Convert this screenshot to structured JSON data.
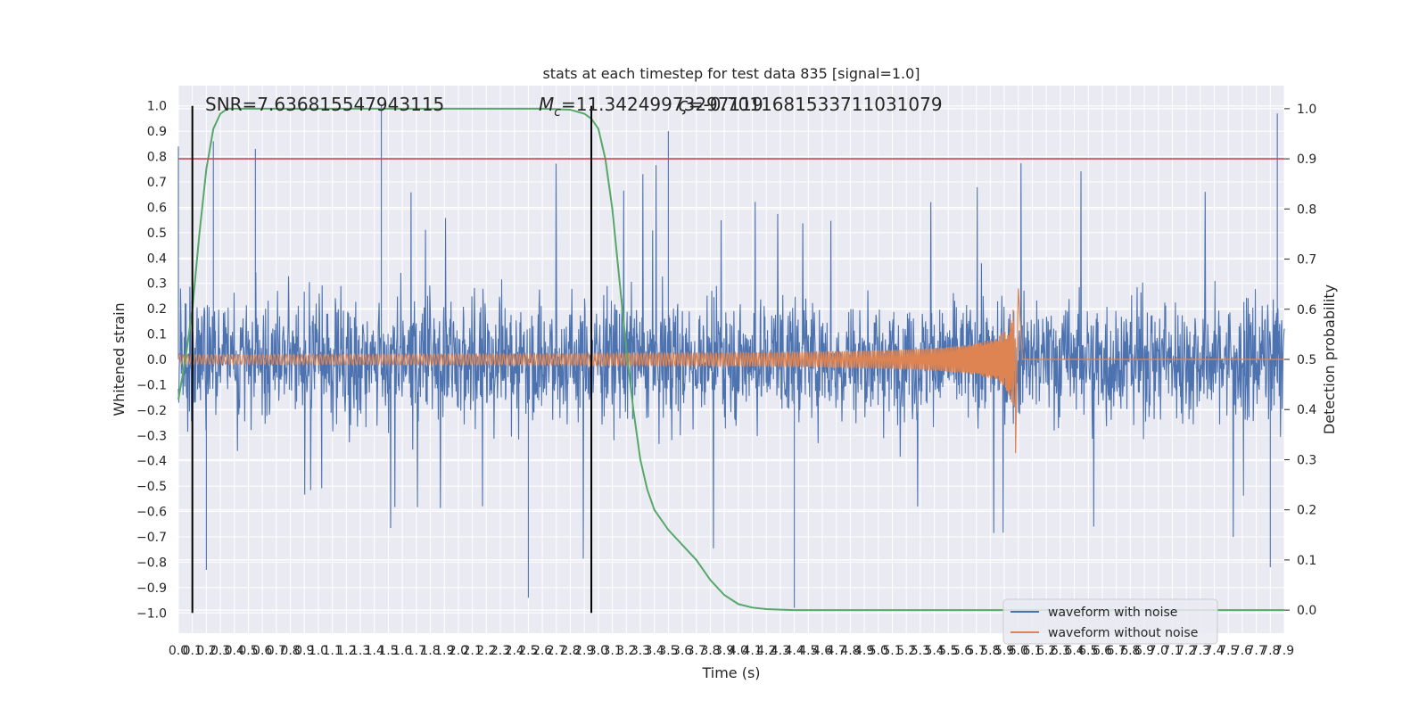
{
  "chart_data": {
    "type": "line",
    "title": "stats at each timestep for test data 835 [signal=1.0]",
    "xlabel": "Time (s)",
    "ylabel_left": "Whitened strain",
    "ylabel_right": "Detection probability",
    "xlim": [
      0.0,
      7.9
    ],
    "ylim_left": [
      -1.08,
      1.08
    ],
    "ylim_right": [
      -0.046,
      1.046
    ],
    "grid": true,
    "legend_position": "lower right",
    "annotations": {
      "snr": "SNR=7.636815547943115",
      "mc_prefix": "M",
      "mc_sub": "c",
      "mc_value": "=11.34249973297119",
      "overlap": "=-0.7011681533711031079"
    },
    "x_ticks": [
      "0.0",
      "0.1",
      "0.2",
      "0.3",
      "0.4",
      "0.5",
      "0.6",
      "0.7",
      "0.8",
      "0.9",
      "1.0",
      "1.1",
      "1.2",
      "1.3",
      "1.4",
      "1.5",
      "1.6",
      "1.7",
      "1.8",
      "1.9",
      "2.0",
      "2.1",
      "2.2",
      "2.3",
      "2.4",
      "2.5",
      "2.6",
      "2.7",
      "2.8",
      "2.9",
      "3.0",
      "3.1",
      "3.2",
      "3.3",
      "3.4",
      "3.5",
      "3.6",
      "3.7",
      "3.8",
      "3.9",
      "4.0",
      "4.1",
      "4.2",
      "4.3",
      "4.4",
      "4.5",
      "4.6",
      "4.7",
      "4.8",
      "4.9",
      "5.0",
      "5.1",
      "5.2",
      "5.3",
      "5.4",
      "5.5",
      "5.6",
      "5.7",
      "5.8",
      "5.9",
      "6.0",
      "6.1",
      "6.2",
      "6.3",
      "6.4",
      "6.5",
      "6.6",
      "6.7",
      "6.8",
      "6.9",
      "7.0",
      "7.1",
      "7.2",
      "7.3",
      "7.4",
      "7.5",
      "7.6",
      "7.7",
      "7.8",
      "7.9"
    ],
    "y_ticks_left": [
      "1.0",
      "0.9",
      "0.8",
      "0.7",
      "0.6",
      "0.5",
      "0.4",
      "0.3",
      "0.2",
      "0.1",
      "0.0",
      "−0.1",
      "−0.2",
      "−0.3",
      "−0.4",
      "−0.5",
      "−0.6",
      "−0.7",
      "−0.8",
      "−0.9",
      "−1.0"
    ],
    "y_ticks_right": [
      "1.0",
      "0.9",
      "0.8",
      "0.7",
      "0.6",
      "0.5",
      "0.4",
      "0.3",
      "0.2",
      "0.1",
      "0.0"
    ],
    "series": [
      {
        "name": "waveform with noise",
        "color": "#4c72b0",
        "typical_envelope": [
          -0.3,
          0.3
        ],
        "notable_peaks": [
          {
            "x": 0.0,
            "y": 0.84
          },
          {
            "x": 0.25,
            "y": 0.86
          },
          {
            "x": 0.55,
            "y": 0.83
          },
          {
            "x": 1.45,
            "y": 1.0
          },
          {
            "x": 2.95,
            "y": 1.0
          },
          {
            "x": 3.5,
            "y": 0.9
          },
          {
            "x": 4.4,
            "y": -0.98
          },
          {
            "x": 7.85,
            "y": 0.97
          },
          {
            "x": 2.5,
            "y": -0.94
          },
          {
            "x": 0.2,
            "y": -0.83
          },
          {
            "x": 7.8,
            "y": -0.82
          }
        ]
      },
      {
        "name": "waveform without noise",
        "color": "#dd8452",
        "chirp": {
          "start": 0.0,
          "merger": 5.98,
          "start_amp": 0.01,
          "peak_amp": 0.28,
          "min_amp": -0.37
        }
      },
      {
        "name": "detection probability",
        "axis": "right",
        "color": "#55a868",
        "x": [
          0.0,
          0.05,
          0.1,
          0.15,
          0.2,
          0.25,
          0.3,
          0.35,
          0.4,
          0.5,
          1.0,
          2.0,
          2.6,
          2.8,
          2.9,
          2.95,
          3.0,
          3.05,
          3.1,
          3.15,
          3.2,
          3.25,
          3.3,
          3.35,
          3.4,
          3.5,
          3.6,
          3.7,
          3.8,
          3.9,
          4.0,
          4.1,
          4.2,
          4.3,
          4.4,
          5.0,
          6.0,
          7.0,
          7.9
        ],
        "y": [
          0.42,
          0.5,
          0.6,
          0.75,
          0.88,
          0.96,
          0.99,
          1.0,
          1.0,
          1.0,
          1.0,
          1.0,
          1.0,
          0.998,
          0.99,
          0.98,
          0.96,
          0.9,
          0.8,
          0.66,
          0.52,
          0.4,
          0.3,
          0.24,
          0.2,
          0.16,
          0.13,
          0.1,
          0.06,
          0.03,
          0.012,
          0.005,
          0.002,
          0.001,
          0.0,
          0.0,
          0.0,
          0.0,
          0.0
        ]
      }
    ],
    "hlines": [
      {
        "y_right": 0.9,
        "color": "#c44e52"
      }
    ],
    "vlines": [
      {
        "x": 0.1,
        "color": "#000000"
      },
      {
        "x": 2.95,
        "color": "#000000"
      }
    ]
  }
}
